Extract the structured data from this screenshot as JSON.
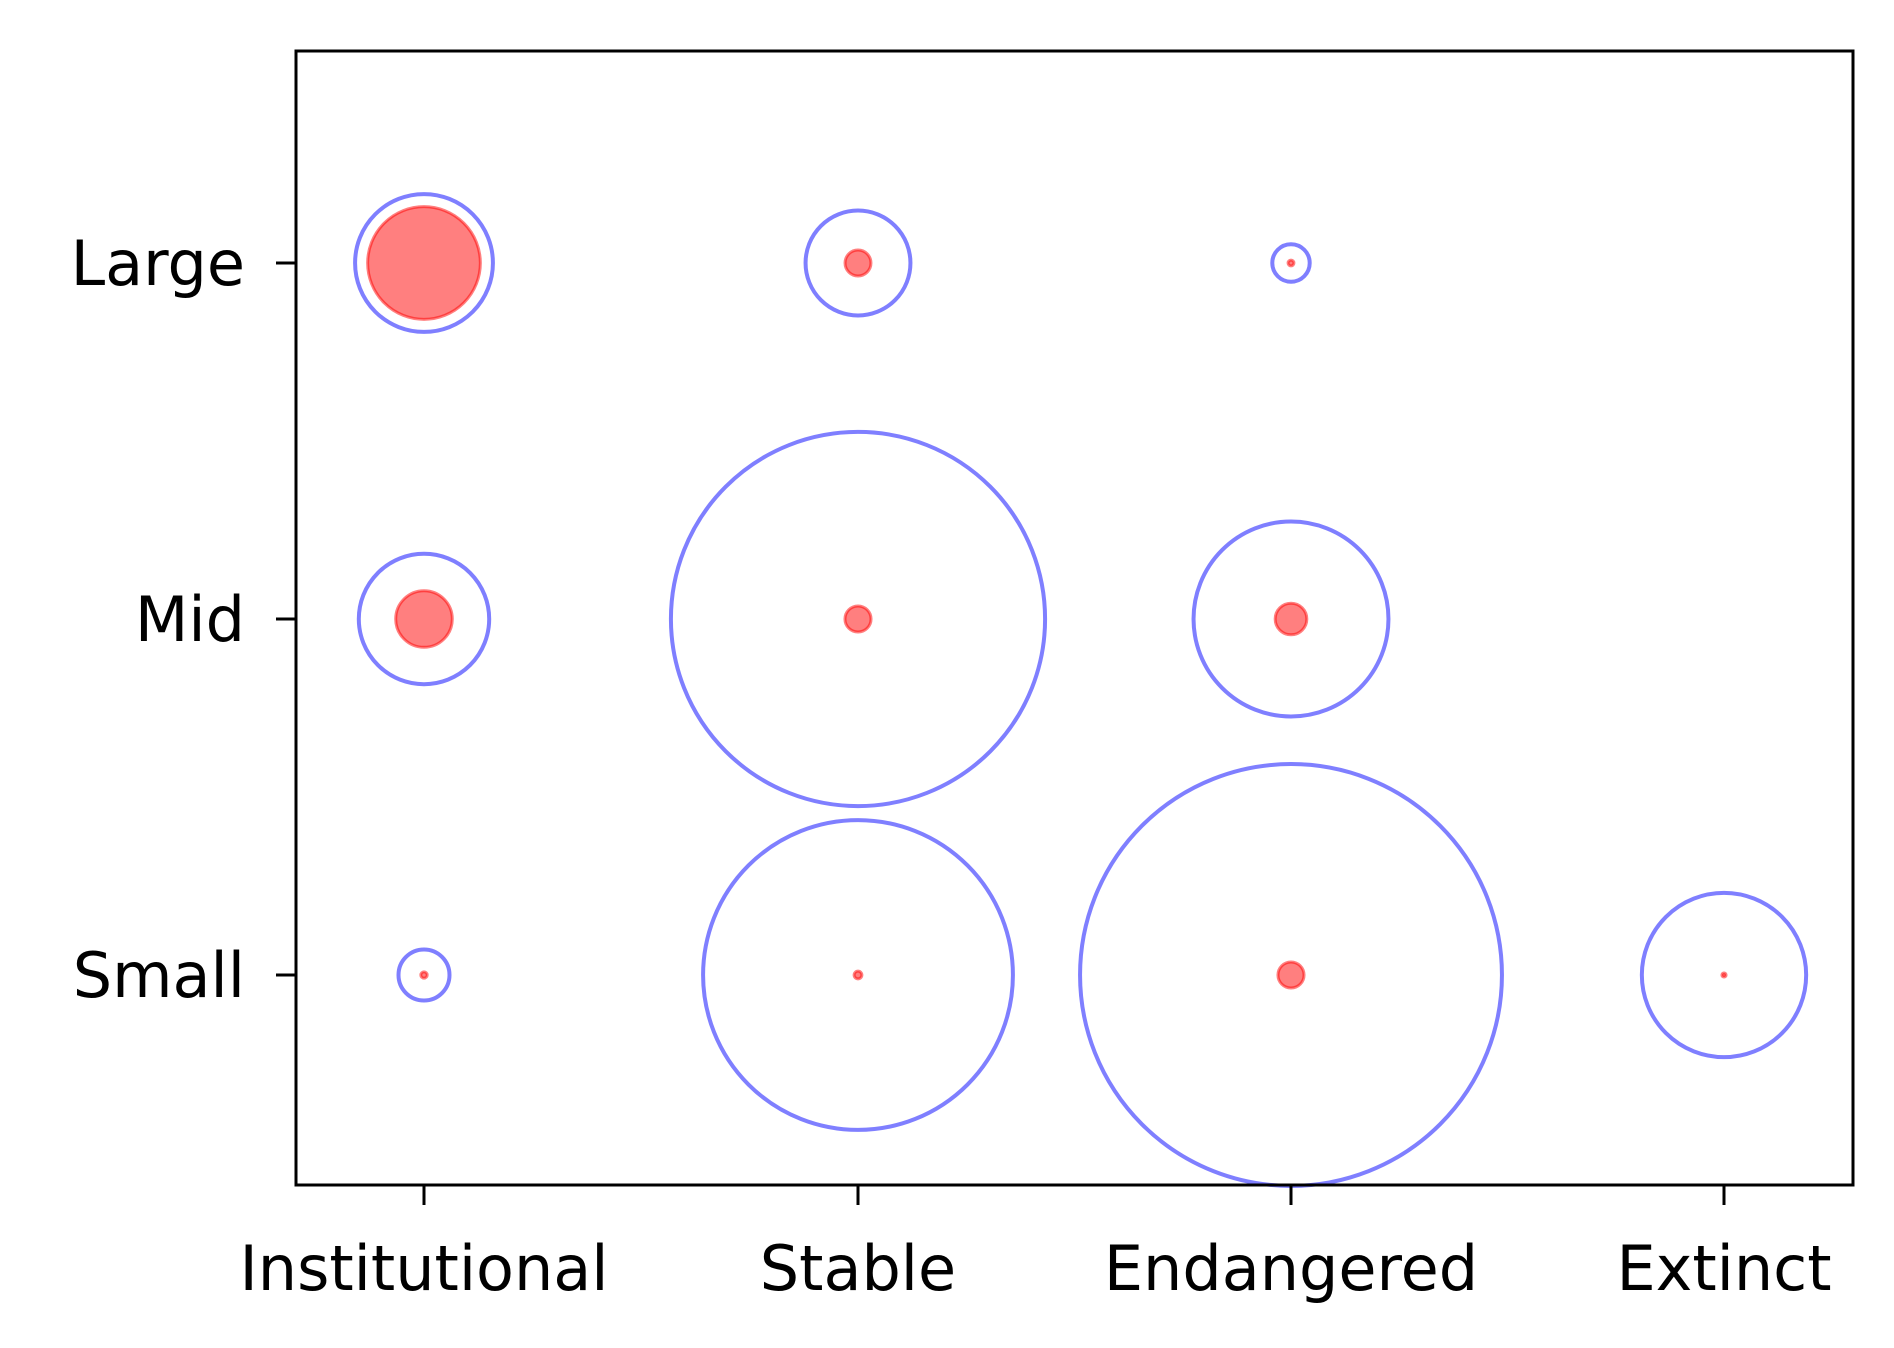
{
  "chart_data": {
    "type": "scatter",
    "subtype": "bubble",
    "title": "",
    "xlabel": "",
    "ylabel": "",
    "categories_x": [
      "Institutional",
      "Stable",
      "Endangered",
      "Extinct"
    ],
    "categories_y": [
      "Small",
      "Mid",
      "Large"
    ],
    "grid": false,
    "legend": "none",
    "colors": {
      "outer_stroke": "#0000ff",
      "inner_fill": "#ff0000",
      "axes": "#000000"
    },
    "series": [
      {
        "style": "hollow-circle",
        "color": "#0000ff",
        "points": [
          {
            "x": "Institutional",
            "y": "Large",
            "value": 1.9
          },
          {
            "x": "Stable",
            "y": "Large",
            "value": 1.1
          },
          {
            "x": "Endangered",
            "y": "Large",
            "value": 0.14
          },
          {
            "x": "Institutional",
            "y": "Mid",
            "value": 1.7
          },
          {
            "x": "Stable",
            "y": "Mid",
            "value": 14.0
          },
          {
            "x": "Endangered",
            "y": "Mid",
            "value": 3.8
          },
          {
            "x": "Institutional",
            "y": "Small",
            "value": 0.26
          },
          {
            "x": "Stable",
            "y": "Small",
            "value": 9.6
          },
          {
            "x": "Endangered",
            "y": "Small",
            "value": 17.8
          },
          {
            "x": "Extinct",
            "y": "Small",
            "value": 2.7
          }
        ]
      },
      {
        "style": "filled-circle",
        "color": "#ff0000",
        "points": [
          {
            "x": "Institutional",
            "y": "Large",
            "value": 1.27
          },
          {
            "x": "Stable",
            "y": "Large",
            "value": 0.067
          },
          {
            "x": "Endangered",
            "y": "Large",
            "value": 0.0034
          },
          {
            "x": "Institutional",
            "y": "Mid",
            "value": 0.32
          },
          {
            "x": "Stable",
            "y": "Mid",
            "value": 0.068
          },
          {
            "x": "Endangered",
            "y": "Mid",
            "value": 0.1
          },
          {
            "x": "Institutional",
            "y": "Small",
            "value": 0.004
          },
          {
            "x": "Stable",
            "y": "Small",
            "value": 0.006
          },
          {
            "x": "Endangered",
            "y": "Small",
            "value": 0.068
          },
          {
            "x": "Extinct",
            "y": "Small",
            "value": 0.0017
          }
        ]
      }
    ]
  }
}
